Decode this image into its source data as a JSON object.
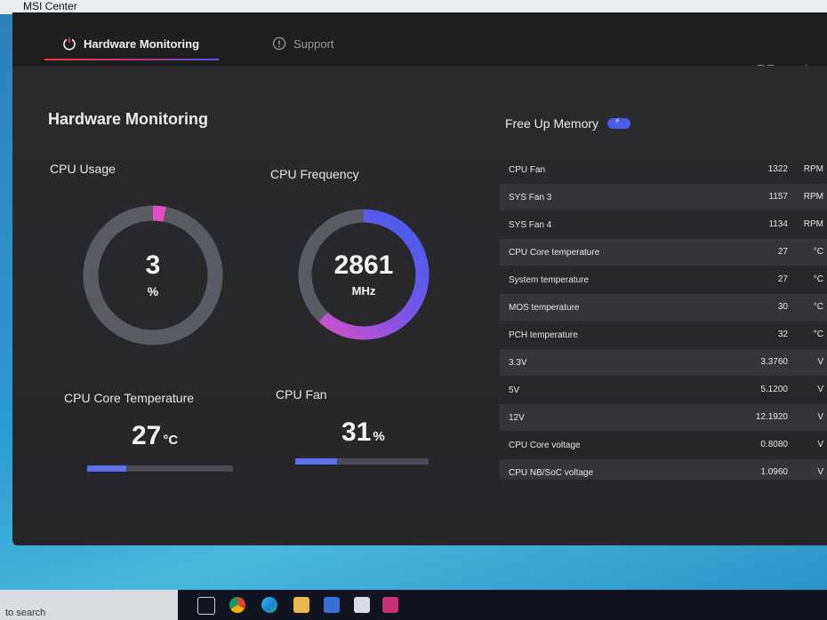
{
  "window": {
    "title": "MSI Center"
  },
  "tabs": [
    {
      "label": "Hardware Monitoring",
      "active": true,
      "icon": "power-icon"
    },
    {
      "label": "Support",
      "active": false,
      "icon": "info-icon"
    }
  ],
  "toolbar": {
    "grid_icon": "grid-icon",
    "settings_icon": "gear-icon"
  },
  "page": {
    "title": "Hardware Monitoring"
  },
  "cpu_usage": {
    "label": "CPU Usage",
    "value": "3",
    "unit": "%",
    "fraction": 0.03
  },
  "cpu_frequency": {
    "label": "CPU Frequency",
    "value": "2861",
    "unit": "MHz",
    "fraction": 0.62
  },
  "cpu_core_temperature": {
    "label": "CPU Core Temperature",
    "value": "27",
    "unit": "°C",
    "bar_fraction": 0.27
  },
  "cpu_fan": {
    "label": "CPU Fan",
    "value": "31",
    "unit": "%",
    "bar_fraction": 0.31
  },
  "free_memory": {
    "label": "Free Up Memory"
  },
  "sensors": [
    {
      "name": "CPU Fan",
      "value": "1322",
      "unit": "RPM"
    },
    {
      "name": "SYS Fan 3",
      "value": "1157",
      "unit": "RPM"
    },
    {
      "name": "SYS Fan 4",
      "value": "1134",
      "unit": "RPM"
    },
    {
      "name": "CPU Core temperature",
      "value": "27",
      "unit": "°C"
    },
    {
      "name": "System temperature",
      "value": "27",
      "unit": "°C"
    },
    {
      "name": "MOS temperature",
      "value": "30",
      "unit": "°C"
    },
    {
      "name": "PCH temperature",
      "value": "32",
      "unit": "°C"
    },
    {
      "name": "3.3V",
      "value": "3.3760",
      "unit": "V"
    },
    {
      "name": "5V",
      "value": "5.1200",
      "unit": "V"
    },
    {
      "name": "12V",
      "value": "12.1920",
      "unit": "V"
    },
    {
      "name": "CPU Core voltage",
      "value": "0.8080",
      "unit": "V"
    },
    {
      "name": "CPU NB/SoC voltage",
      "value": "1.0960",
      "unit": "V"
    }
  ],
  "taskbar": {
    "search_text": "to search"
  },
  "colors": {
    "accent_blue": "#4c5ce4",
    "accent_pink": "#e050c8",
    "accent_red": "#e23b3b"
  }
}
